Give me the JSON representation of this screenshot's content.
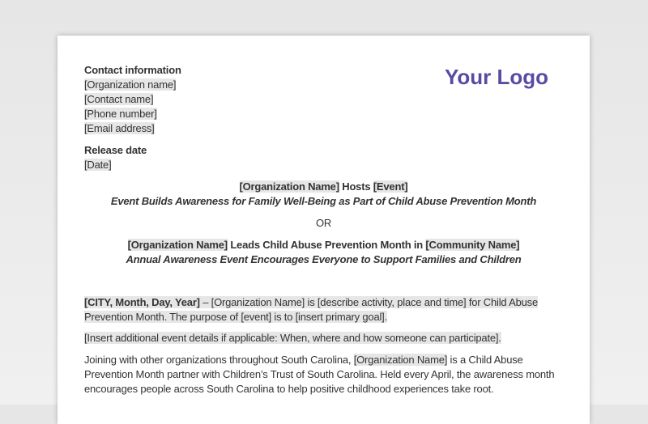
{
  "logo": {
    "text": "Your Logo",
    "color": "#5b4aa3"
  },
  "contact": {
    "heading": "Contact information",
    "lines": [
      "[Organization name]",
      "[Contact name]",
      "[Phone number]",
      "[Email address]"
    ]
  },
  "release": {
    "heading": "Release date",
    "value": "[Date]"
  },
  "headline1": {
    "org": "[Organization Name]",
    "middle": " Hosts ",
    "event": "[Event]",
    "subtitle": "Event Builds Awareness for Family Well-Being as Part of Child Abuse Prevention Month"
  },
  "or": "OR",
  "headline2": {
    "org": "[Organization Name]",
    "middle": " Leads Child Abuse Prevention Month in ",
    "community": "[Community Name]",
    "subtitle": "Annual Awareness Event Encourages Everyone to Support Families and Children"
  },
  "body": {
    "p1_dateline": "[CITY, Month, Day, Year]",
    "p1_text": " – [Organization Name] is [describe activity, place and time] for Child Abuse Prevention Month. The purpose of [event] is to [insert primary goal].",
    "p2": "[Insert additional event details if applicable: When, where and how someone can participate].",
    "p3_before": "Joining with other organizations throughout South Carolina, ",
    "p3_org": "[Organization Name]",
    "p3_after": " is a Child Abuse Prevention Month partner with Children’s Trust of South Carolina. Held every April, the awareness month encourages people across South Carolina to help positive childhood experiences take root."
  }
}
